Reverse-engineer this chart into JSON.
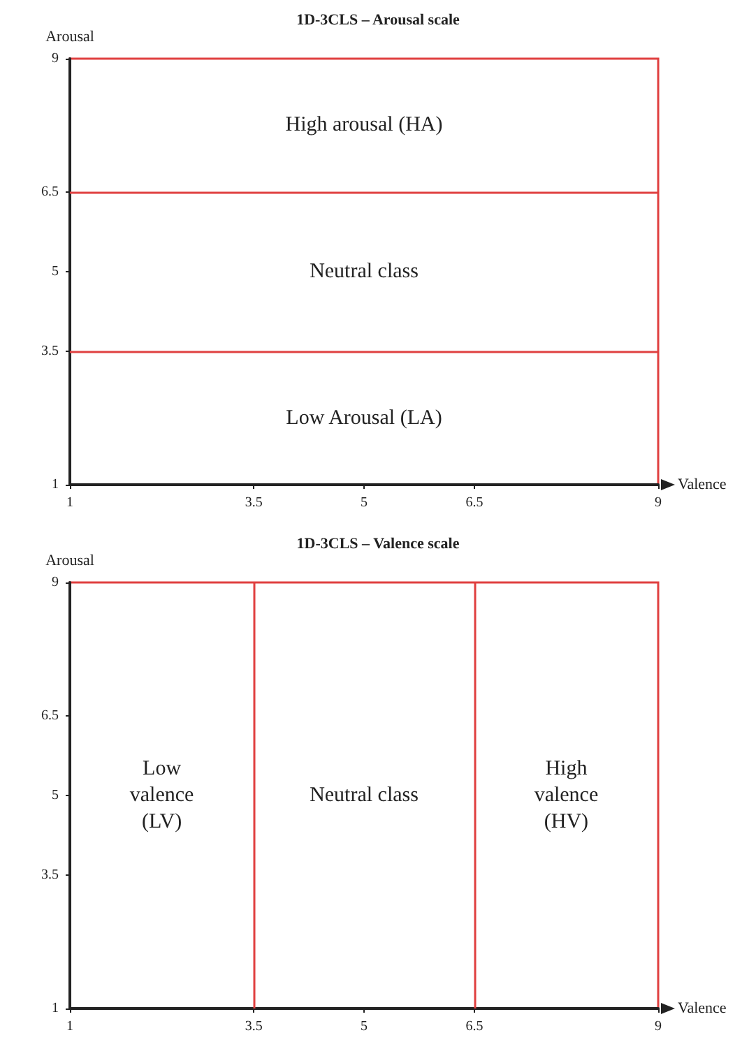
{
  "chart_data": [
    {
      "type": "line",
      "title": "1D-3CLS – Arousal scale",
      "xlabel": "Valence",
      "ylabel": "Arousal",
      "xlim": [
        1,
        9
      ],
      "ylim": [
        1,
        9
      ],
      "xticks": [
        1,
        3.5,
        5,
        6.5,
        9
      ],
      "yticks": [
        1,
        3.5,
        5,
        6.5,
        9
      ],
      "ref_lines": [
        {
          "axis": "y",
          "value": 6.5,
          "color": "#e04040"
        },
        {
          "axis": "y",
          "value": 3.5,
          "color": "#e04040"
        }
      ],
      "annotations": [
        "High arousal (HA)",
        "Neutral class",
        "Low Arousal (LA)"
      ]
    },
    {
      "type": "line",
      "title": "1D-3CLS – Valence scale",
      "xlabel": "Valence",
      "ylabel": "Arousal",
      "xlim": [
        1,
        9
      ],
      "ylim": [
        1,
        9
      ],
      "xticks": [
        1,
        3.5,
        5,
        6.5,
        9
      ],
      "yticks": [
        1,
        3.5,
        5,
        6.5,
        9
      ],
      "ref_lines": [
        {
          "axis": "x",
          "value": 3.5,
          "color": "#e04040"
        },
        {
          "axis": "x",
          "value": 6.5,
          "color": "#e04040"
        }
      ],
      "annotations": [
        "Low\nvalence\n(LV)",
        "Neutral class",
        "High\nvalence\n(HV)"
      ]
    }
  ]
}
